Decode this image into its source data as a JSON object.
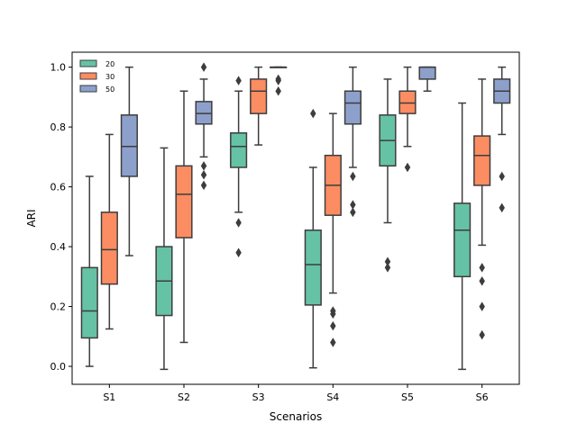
{
  "chart_data": {
    "type": "box",
    "title": "",
    "xlabel": "Scenarios",
    "ylabel": "ARI",
    "ylim": [
      -0.06,
      1.05
    ],
    "yticks": [
      "0.0",
      "0.2",
      "0.4",
      "0.6",
      "0.8",
      "1.0"
    ],
    "categories": [
      "S1",
      "S2",
      "S3",
      "S4",
      "S5",
      "S6"
    ],
    "legend_position": "top-left",
    "series": [
      {
        "name": "20",
        "color": "#66c2a5",
        "edge": "#3d3d3d",
        "boxes": [
          {
            "whislo": 0.0,
            "q1": 0.095,
            "med": 0.185,
            "q3": 0.33,
            "whishi": 0.635,
            "fliers": []
          },
          {
            "whislo": -0.01,
            "q1": 0.17,
            "med": 0.285,
            "q3": 0.4,
            "whishi": 0.73,
            "fliers": []
          },
          {
            "whislo": 0.515,
            "q1": 0.665,
            "med": 0.735,
            "q3": 0.78,
            "whishi": 0.92,
            "fliers": [
              0.38,
              0.48,
              0.955
            ]
          },
          {
            "whislo": -0.005,
            "q1": 0.205,
            "med": 0.34,
            "q3": 0.455,
            "whishi": 0.665,
            "fliers": [
              0.845
            ]
          },
          {
            "whislo": 0.48,
            "q1": 0.67,
            "med": 0.755,
            "q3": 0.84,
            "whishi": 0.96,
            "fliers": [
              0.33,
              0.35
            ]
          },
          {
            "whislo": -0.01,
            "q1": 0.3,
            "med": 0.455,
            "q3": 0.545,
            "whishi": 0.88,
            "fliers": []
          }
        ]
      },
      {
        "name": "30",
        "color": "#fc8d62",
        "edge": "#3d3d3d",
        "boxes": [
          {
            "whislo": 0.125,
            "q1": 0.275,
            "med": 0.39,
            "q3": 0.515,
            "whishi": 0.775,
            "fliers": []
          },
          {
            "whislo": 0.08,
            "q1": 0.43,
            "med": 0.575,
            "q3": 0.67,
            "whishi": 0.92,
            "fliers": []
          },
          {
            "whislo": 0.74,
            "q1": 0.845,
            "med": 0.92,
            "q3": 0.96,
            "whishi": 1.0,
            "fliers": []
          },
          {
            "whislo": 0.245,
            "q1": 0.505,
            "med": 0.605,
            "q3": 0.705,
            "whishi": 0.845,
            "fliers": [
              0.08,
              0.135,
              0.175,
              0.185
            ]
          },
          {
            "whislo": 0.735,
            "q1": 0.845,
            "med": 0.88,
            "q3": 0.92,
            "whishi": 1.0,
            "fliers": [
              0.665
            ]
          },
          {
            "whislo": 0.405,
            "q1": 0.605,
            "med": 0.705,
            "q3": 0.77,
            "whishi": 0.96,
            "fliers": [
              0.105,
              0.2,
              0.285,
              0.33
            ]
          }
        ]
      },
      {
        "name": "50",
        "color": "#8da0cb",
        "edge": "#3d3d3d",
        "boxes": [
          {
            "whislo": 0.37,
            "q1": 0.635,
            "med": 0.735,
            "q3": 0.84,
            "whishi": 1.0,
            "fliers": []
          },
          {
            "whislo": 0.7,
            "q1": 0.81,
            "med": 0.845,
            "q3": 0.885,
            "whishi": 0.96,
            "fliers": [
              0.605,
              0.64,
              0.67,
              1.0
            ]
          },
          {
            "whislo": 1.0,
            "q1": 1.0,
            "med": 1.0,
            "q3": 1.0,
            "whishi": 1.0,
            "fliers": [
              0.92,
              0.955,
              0.96
            ]
          },
          {
            "whislo": 0.665,
            "q1": 0.81,
            "med": 0.88,
            "q3": 0.92,
            "whishi": 1.0,
            "fliers": [
              0.515,
              0.54,
              0.635
            ]
          },
          {
            "whislo": 0.92,
            "q1": 0.96,
            "med": 1.0,
            "q3": 1.0,
            "whishi": 1.0,
            "fliers": []
          },
          {
            "whislo": 0.775,
            "q1": 0.88,
            "med": 0.92,
            "q3": 0.96,
            "whishi": 1.0,
            "fliers": [
              0.53,
              0.635
            ]
          }
        ]
      }
    ]
  }
}
